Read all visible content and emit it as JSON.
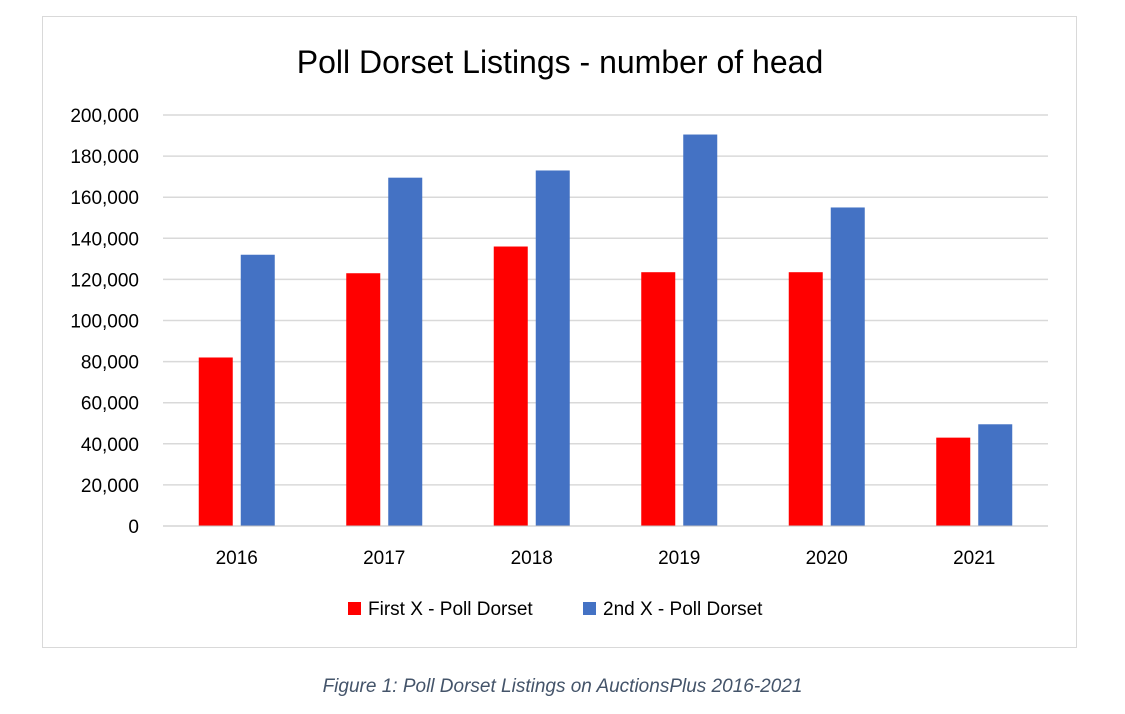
{
  "chart_data": {
    "type": "bar",
    "title": "Poll Dorset Listings - number of head",
    "xlabel": "",
    "ylabel": "",
    "categories": [
      "2016",
      "2017",
      "2018",
      "2019",
      "2020",
      "2021"
    ],
    "series": [
      {
        "name": "First X - Poll Dorset",
        "color": "#ff0000",
        "values": [
          82000,
          123000,
          136000,
          123500,
          123500,
          43000
        ]
      },
      {
        "name": "2nd X - Poll Dorset",
        "color": "#4472c4",
        "values": [
          132000,
          169500,
          173000,
          190500,
          155000,
          49500
        ]
      }
    ],
    "ylim": [
      0,
      200000
    ],
    "yticks": [
      "0",
      "20,000",
      "40,000",
      "60,000",
      "80,000",
      "100,000",
      "120,000",
      "140,000",
      "160,000",
      "180,000",
      "200,000"
    ],
    "grid": true,
    "legend": "bottom"
  },
  "caption": "Figure 1: Poll Dorset Listings on AuctionsPlus 2016-2021"
}
